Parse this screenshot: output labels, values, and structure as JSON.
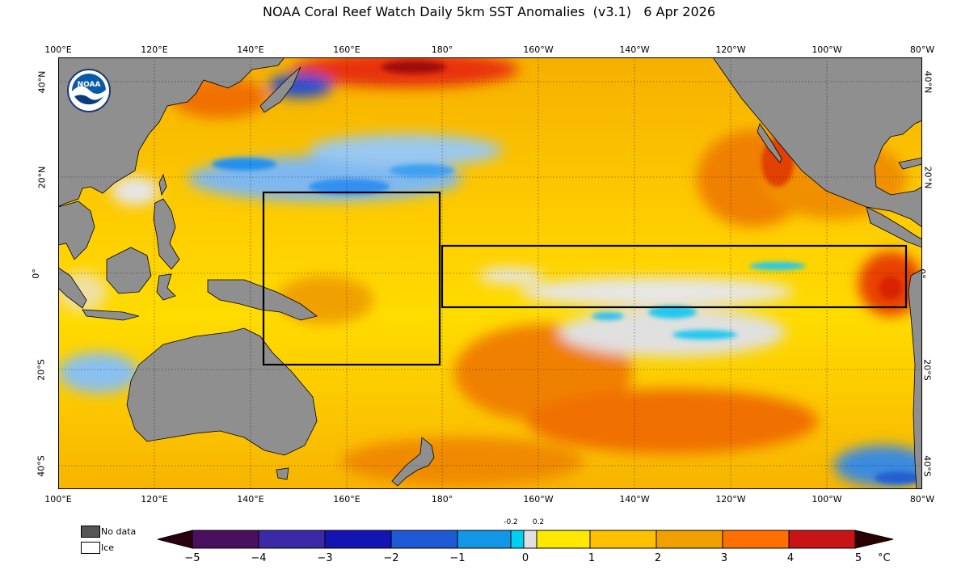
{
  "title": "NOAA Coral Reef Watch Daily 5km SST Anomalies  (v3.1)   6 Apr 2026",
  "logo_text": "NOAA",
  "map": {
    "lon_labels": [
      "100°E",
      "120°E",
      "140°E",
      "160°E",
      "180°",
      "160°W",
      "140°W",
      "120°W",
      "100°W",
      "80°W"
    ],
    "lat_labels_left": [
      "40°N",
      "20°N",
      "0°",
      "20°S",
      "40°S"
    ],
    "lat_labels_right": [
      "40°N",
      "20°N",
      "0°",
      "20°S",
      "40°S"
    ],
    "lon_range": [
      100,
      280
    ],
    "lat_range": [
      -45,
      45
    ],
    "gridlines": true
  },
  "boxes": [
    {
      "name": "western-pacific-box",
      "lon": [
        142.5,
        179.5
      ],
      "lat": [
        -19,
        17
      ]
    },
    {
      "name": "nino-box",
      "lon": [
        180,
        275
      ],
      "lat": [
        -6.5,
        5.5
      ]
    }
  ],
  "legend": {
    "no_data": "No data",
    "ice": "Ice",
    "no_data_color": "#555555",
    "ice_color": "#ffffff"
  },
  "colorbar": {
    "ticks": [
      "−5",
      "−4",
      "−3",
      "−2",
      "−1",
      "0",
      "1",
      "2",
      "3",
      "4",
      "5"
    ],
    "small_ticks": [
      "-0.2",
      "0.2"
    ],
    "unit": "°C",
    "range": [
      -5,
      5
    ],
    "colors": [
      "#3a0020",
      "#4a1060",
      "#3a2aa8",
      "#1414b4",
      "#1e5ad6",
      "#1496e8",
      "#00c8f0",
      "#e0e0e0",
      "#ffe800",
      "#ffc000",
      "#f0a000",
      "#ff7800",
      "#f04000",
      "#c81414",
      "#7a0a0a",
      "#2a0000"
    ]
  }
}
